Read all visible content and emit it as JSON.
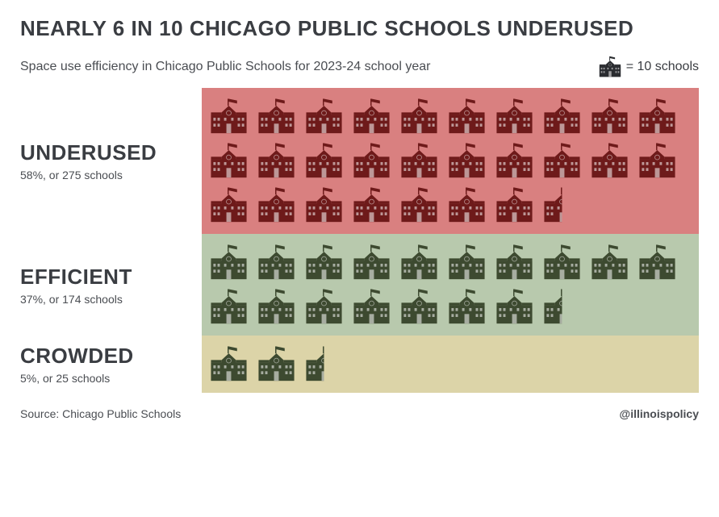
{
  "title": "NEARLY 6 IN 10 CHICAGO PUBLIC SCHOOLS UNDERUSED",
  "subtitle": "Space use efficiency in Chicago Public Schools for 2023-24 school year",
  "legend_text": "= 10 schools",
  "legend_icon_color": "#2a2c30",
  "icons_per_row": 10,
  "categories": [
    {
      "name": "UNDERUSED",
      "detail": "58%, or 275 schools",
      "count": 27.5,
      "block_color": "#d98080",
      "icon_color": "#6e1a1a"
    },
    {
      "name": "EFFICIENT",
      "detail": "37%, or 174 schools",
      "count": 17.5,
      "block_color": "#b8c9ad",
      "icon_color": "#3d4a30"
    },
    {
      "name": "CROWDED",
      "detail": "5%, or 25 schools",
      "count": 2.5,
      "block_color": "#dcd4a8",
      "icon_color": "#3d4a30"
    }
  ],
  "source": "Source: Chicago Public Schools",
  "credit": "@illinoispolicy",
  "colors": {
    "text_dark": "#3a3d42",
    "text_mid": "#4a4d52",
    "background": "#ffffff"
  },
  "title_fontsize": 26,
  "subtitle_fontsize": 16,
  "cat_name_fontsize": 26,
  "cat_detail_fontsize": 14,
  "footer_fontsize": 14
}
